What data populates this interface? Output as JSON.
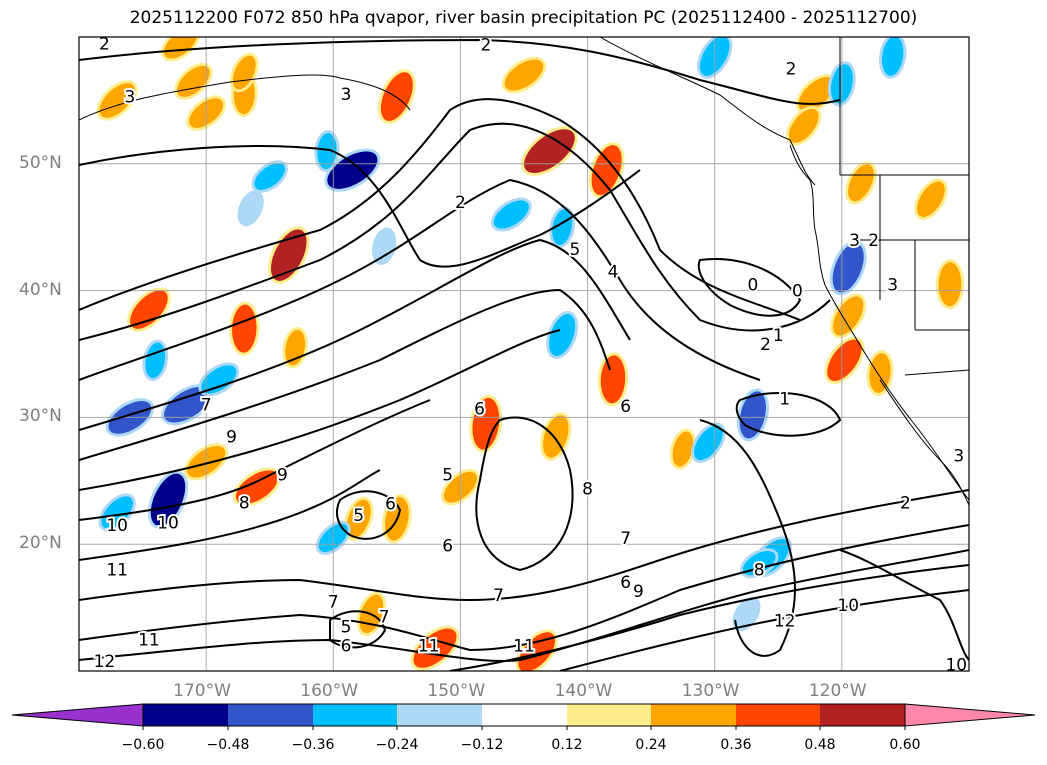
{
  "chart_data": {
    "type": "heatmap",
    "title": "2025112200 F072 850 hPa qvapor, river basin precipitation PC (2025112400 - 2025112700)",
    "lat_ticks": [
      "20°N",
      "30°N",
      "40°N",
      "50°N"
    ],
    "lon_ticks": [
      "170°W",
      "160°W",
      "150°W",
      "140°W",
      "130°W",
      "120°W"
    ],
    "lat_range": [
      10,
      60
    ],
    "lon_range": [
      -180,
      -110
    ],
    "colorbar": {
      "tick_labels": [
        "−0.60",
        "−0.48",
        "−0.36",
        "−0.24",
        "−0.12",
        "0.12",
        "0.24",
        "0.36",
        "0.48",
        "0.60"
      ],
      "colors": [
        "#9932cc",
        "#00008b",
        "#3355cc",
        "#00bfff",
        "#add8f6",
        "#ffffff",
        "#ffec8b",
        "#ffa500",
        "#ff4500",
        "#b22222",
        "#ff88aa"
      ],
      "extend": "both"
    },
    "contour_labels": [
      {
        "text": "2",
        "lon": -178,
        "lat": 59.5
      },
      {
        "text": "2",
        "lon": -148,
        "lat": 59.4
      },
      {
        "text": "2",
        "lon": -124,
        "lat": 57.5
      },
      {
        "text": "3",
        "lon": -176,
        "lat": 55.3
      },
      {
        "text": "3",
        "lon": -159,
        "lat": 55.5
      },
      {
        "text": "2",
        "lon": -150,
        "lat": 47.0
      },
      {
        "text": "5",
        "lon": -141,
        "lat": 43.3
      },
      {
        "text": "4",
        "lon": -138,
        "lat": 41.5
      },
      {
        "text": "0",
        "lon": -127,
        "lat": 40.5
      },
      {
        "text": "0",
        "lon": -123.5,
        "lat": 40.0
      },
      {
        "text": "3",
        "lon": -119,
        "lat": 44.0
      },
      {
        "text": "2",
        "lon": -117.5,
        "lat": 44.0
      },
      {
        "text": "3",
        "lon": -116,
        "lat": 40.5
      },
      {
        "text": "2",
        "lon": -126,
        "lat": 35.8
      },
      {
        "text": "1",
        "lon": -125,
        "lat": 36.5
      },
      {
        "text": "1",
        "lon": -124.5,
        "lat": 31.5
      },
      {
        "text": "6",
        "lon": -148.5,
        "lat": 30.7
      },
      {
        "text": "6",
        "lon": -137,
        "lat": 30.9
      },
      {
        "text": "7",
        "lon": -170,
        "lat": 31.0
      },
      {
        "text": "9",
        "lon": -168,
        "lat": 28.5
      },
      {
        "text": "9",
        "lon": -164,
        "lat": 25.5
      },
      {
        "text": "8",
        "lon": -167,
        "lat": 23.3
      },
      {
        "text": "5",
        "lon": -151,
        "lat": 25.5
      },
      {
        "text": "8",
        "lon": -140,
        "lat": 24.4
      },
      {
        "text": "6",
        "lon": -155.5,
        "lat": 23.2
      },
      {
        "text": "5",
        "lon": -158,
        "lat": 22.3
      },
      {
        "text": "6",
        "lon": -151,
        "lat": 19.9
      },
      {
        "text": "7",
        "lon": -137,
        "lat": 20.5
      },
      {
        "text": "6",
        "lon": -137,
        "lat": 17.0
      },
      {
        "text": "9",
        "lon": -136,
        "lat": 16.3
      },
      {
        "text": "8",
        "lon": -126.5,
        "lat": 18.0
      },
      {
        "text": "7",
        "lon": -147,
        "lat": 16.0
      },
      {
        "text": "7",
        "lon": -160,
        "lat": 15.5
      },
      {
        "text": "7",
        "lon": -156,
        "lat": 14.3
      },
      {
        "text": "5",
        "lon": -159,
        "lat": 13.5
      },
      {
        "text": "6",
        "lon": -159,
        "lat": 12.0
      },
      {
        "text": "10",
        "lon": -177,
        "lat": 21.5
      },
      {
        "text": "10",
        "lon": -173,
        "lat": 21.7
      },
      {
        "text": "11",
        "lon": -177,
        "lat": 18.0
      },
      {
        "text": "11",
        "lon": -174.5,
        "lat": 12.5
      },
      {
        "text": "12",
        "lon": -178,
        "lat": 10.8
      },
      {
        "text": "11",
        "lon": -152.5,
        "lat": 12.0
      },
      {
        "text": "11",
        "lon": -145,
        "lat": 12.0
      },
      {
        "text": "10",
        "lon": -119.5,
        "lat": 15.2
      },
      {
        "text": "12",
        "lon": -124.5,
        "lat": 14.0
      },
      {
        "text": "2",
        "lon": -115,
        "lat": 23.3
      },
      {
        "text": "10",
        "lon": -111,
        "lat": 10.5
      },
      {
        "text": "3",
        "lon": -110.8,
        "lat": 27.0
      }
    ],
    "precip_patches": [
      {
        "lon": -174.5,
        "lat": 38.5,
        "value": 0.4
      },
      {
        "lon": -163.5,
        "lat": 42.8,
        "value": 0.5
      },
      {
        "lon": -167,
        "lat": 37.0,
        "value": 0.4
      },
      {
        "lon": -171,
        "lat": 56.5,
        "value": 0.3
      },
      {
        "lon": -177,
        "lat": 55.0,
        "value": 0.35
      },
      {
        "lon": -170,
        "lat": 54.0,
        "value": 0.3
      },
      {
        "lon": -167,
        "lat": 55.5,
        "value": 0.3
      },
      {
        "lon": -155,
        "lat": 55.3,
        "value": 0.45
      },
      {
        "lon": -145,
        "lat": 57.0,
        "value": 0.35
      },
      {
        "lon": -143,
        "lat": 51.0,
        "value": 0.55
      },
      {
        "lon": -138.5,
        "lat": 49.5,
        "value": 0.45
      },
      {
        "lon": -122,
        "lat": 55.5,
        "value": 0.35
      },
      {
        "lon": -123,
        "lat": 53.0,
        "value": 0.3
      },
      {
        "lon": -118.5,
        "lat": 48.5,
        "value": 0.3
      },
      {
        "lon": -113,
        "lat": 47.2,
        "value": 0.3
      },
      {
        "lon": -111.5,
        "lat": 40.5,
        "value": 0.35
      },
      {
        "lon": -119.5,
        "lat": 38.0,
        "value": 0.35
      },
      {
        "lon": -119.8,
        "lat": 34.5,
        "value": 0.4
      },
      {
        "lon": -117,
        "lat": 33.5,
        "value": 0.3
      },
      {
        "lon": -138,
        "lat": 33.0,
        "value": 0.4
      },
      {
        "lon": -148,
        "lat": 29.5,
        "value": 0.45
      },
      {
        "lon": -142.5,
        "lat": 28.5,
        "value": 0.35
      },
      {
        "lon": -170,
        "lat": 26.5,
        "value": 0.35
      },
      {
        "lon": -166,
        "lat": 24.5,
        "value": 0.4
      },
      {
        "lon": -155,
        "lat": 22.0,
        "value": 0.35
      },
      {
        "lon": -158,
        "lat": 22.0,
        "value": 0.3
      },
      {
        "lon": -152,
        "lat": 11.8,
        "value": 0.45
      },
      {
        "lon": -144,
        "lat": 11.5,
        "value": 0.4
      },
      {
        "lon": -150,
        "lat": 24.5,
        "value": 0.3
      },
      {
        "lon": -157,
        "lat": 14.5,
        "value": 0.3
      },
      {
        "lon": -132.5,
        "lat": 27.5,
        "value": 0.25
      },
      {
        "lon": -167,
        "lat": 57.2,
        "value": 0.25
      },
      {
        "lon": -163,
        "lat": 35.5,
        "value": 0.25
      },
      {
        "lon": -172,
        "lat": 59.5,
        "value": 0.3
      },
      {
        "lon": -176,
        "lat": 30.0,
        "value": -0.4
      },
      {
        "lon": -171.5,
        "lat": 31.0,
        "value": -0.45
      },
      {
        "lon": -173,
        "lat": 23.5,
        "value": -0.5
      },
      {
        "lon": -177,
        "lat": 22.5,
        "value": -0.3
      },
      {
        "lon": -158.5,
        "lat": 49.5,
        "value": -0.5
      },
      {
        "lon": -146,
        "lat": 46.0,
        "value": -0.3
      },
      {
        "lon": -142,
        "lat": 45.0,
        "value": -0.25
      },
      {
        "lon": -130,
        "lat": 58.5,
        "value": -0.35
      },
      {
        "lon": -120,
        "lat": 56.3,
        "value": -0.3
      },
      {
        "lon": -116,
        "lat": 58.5,
        "value": -0.3
      },
      {
        "lon": -127,
        "lat": 30.2,
        "value": -0.4
      },
      {
        "lon": -119.5,
        "lat": 41.8,
        "value": -0.45
      },
      {
        "lon": -130.5,
        "lat": 28.0,
        "value": -0.3
      },
      {
        "lon": -125.5,
        "lat": 19.0,
        "value": -0.35
      },
      {
        "lon": -169,
        "lat": 33.0,
        "value": -0.3
      },
      {
        "lon": -142,
        "lat": 36.5,
        "value": -0.35
      },
      {
        "lon": -174,
        "lat": 34.5,
        "value": -0.25
      },
      {
        "lon": -160,
        "lat": 20.5,
        "value": -0.25
      },
      {
        "lon": -156,
        "lat": 43.5,
        "value": -0.2
      },
      {
        "lon": -160.5,
        "lat": 51.0,
        "value": -0.25
      },
      {
        "lon": -165,
        "lat": 49.0,
        "value": -0.25
      },
      {
        "lon": -166.5,
        "lat": 46.5,
        "value": -0.2
      },
      {
        "lon": -126.5,
        "lat": 18.5,
        "value": -0.25
      },
      {
        "lon": -127.5,
        "lat": 14.5,
        "value": -0.2
      }
    ]
  }
}
